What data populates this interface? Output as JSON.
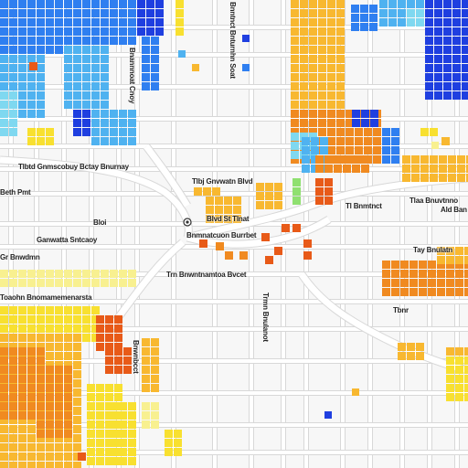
{
  "map": {
    "palette": {
      "deep_blue": "#1f3fe0",
      "blue": "#2f7ff0",
      "sky": "#4fb2f0",
      "cyan": "#7fd8f0",
      "green": "#8fe070",
      "yellow": "#f8e030",
      "light_yellow": "#f8f090",
      "orange_yellow": "#f8b830",
      "orange": "#f08a20",
      "red_orange": "#e85a18",
      "street": "#ffffff",
      "street_edge": "#d8d8d8",
      "background": "#f7f7f7"
    },
    "icons": [
      "map-pin-icon",
      "transit-marker-icon"
    ],
    "labels": [
      "Tlbtd Gnmscobuy Bctay Bnurnay",
      "Blvd St Tlnat",
      "Bnmnatcuon Burrbet",
      "Ganwatta Sntcaoy",
      "Toaohn Bnomamemenarsta",
      "Trn Bnwntnamtoa Bvcet",
      "Tlbj Gnvwatn Blvd",
      "Beth Pmt",
      "Tay Bnulatn",
      "Gr Bnwdmn",
      "Bloi",
      "Tlaa Bnuvtnno",
      "Ald Ban",
      "Tl Bnmtnct",
      "Bnannnoat Cnoy",
      "Trmn Bnulanot",
      "Bnwnbcct",
      "Bnntnct Bnturnhn Soat",
      "Tbnr"
    ]
  }
}
